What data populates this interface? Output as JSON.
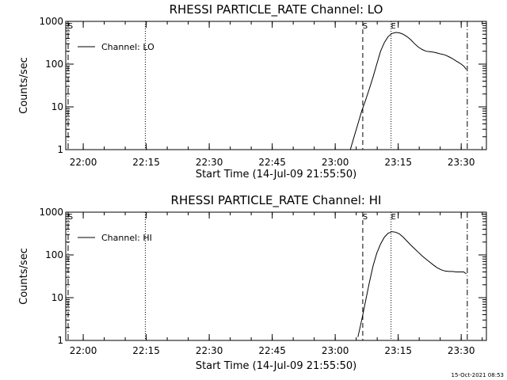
{
  "footer": {
    "timestamp": "15-Oct-2021 08:53"
  },
  "chart_data": [
    {
      "type": "line",
      "title": "RHESSI PARTICLE_RATE Channel: LO",
      "xlabel": "Start Time (14-Jul-09 21:55:50)",
      "ylabel": "Counts/sec",
      "yscale": "log",
      "xlim": [
        21.9306,
        23.6
      ],
      "ylim": [
        1,
        1000
      ],
      "xticks": [
        {
          "v": 22.0,
          "label": "22:00"
        },
        {
          "v": 22.25,
          "label": "22:15"
        },
        {
          "v": 22.5,
          "label": "22:30"
        },
        {
          "v": 22.75,
          "label": "22:45"
        },
        {
          "v": 23.0,
          "label": "23:00"
        },
        {
          "v": 23.25,
          "label": "23:15"
        },
        {
          "v": 23.5,
          "label": "23:30"
        }
      ],
      "yticks": [
        {
          "v": 1,
          "label": "1"
        },
        {
          "v": 10,
          "label": "10"
        },
        {
          "v": 100,
          "label": "100"
        },
        {
          "v": 1000,
          "label": "1000"
        }
      ],
      "legend": {
        "position": "top-left",
        "entries": [
          "Channel: LO"
        ]
      },
      "series": [
        {
          "name": "Channel: LO",
          "color": "#000000",
          "x": [
            23.06,
            23.075,
            23.09,
            23.105,
            23.12,
            23.135,
            23.15,
            23.165,
            23.18,
            23.195,
            23.21,
            23.225,
            23.24,
            23.255,
            23.27,
            23.285,
            23.3,
            23.315,
            23.33,
            23.345,
            23.36,
            23.375,
            23.39,
            23.405,
            23.42,
            23.435,
            23.45,
            23.465,
            23.48,
            23.495,
            23.51,
            23.52
          ],
          "y": [
            1,
            2,
            4,
            8,
            14,
            26,
            50,
            100,
            200,
            320,
            440,
            520,
            550,
            540,
            500,
            440,
            370,
            300,
            250,
            220,
            200,
            195,
            190,
            182,
            172,
            165,
            150,
            135,
            118,
            105,
            90,
            75
          ]
        }
      ],
      "vlines": [
        {
          "x": 21.94,
          "style": "dashdot",
          "label": "S"
        },
        {
          "x": 22.2463,
          "style": "dotted",
          "label": ""
        },
        {
          "x": 23.1093,
          "style": "dashed",
          "label": "S"
        },
        {
          "x": 23.2216,
          "style": "dotted",
          "label": "E"
        },
        {
          "x": 23.5241,
          "style": "dashdot",
          "label": ""
        }
      ]
    },
    {
      "type": "line",
      "title": "RHESSI PARTICLE_RATE Channel: HI",
      "xlabel": "Start Time (14-Jul-09 21:55:50)",
      "ylabel": "Counts/sec",
      "yscale": "log",
      "xlim": [
        21.9306,
        23.6
      ],
      "ylim": [
        1,
        1000
      ],
      "xticks": [
        {
          "v": 22.0,
          "label": "22:00"
        },
        {
          "v": 22.25,
          "label": "22:15"
        },
        {
          "v": 22.5,
          "label": "22:30"
        },
        {
          "v": 22.75,
          "label": "22:45"
        },
        {
          "v": 23.0,
          "label": "23:00"
        },
        {
          "v": 23.25,
          "label": "23:15"
        },
        {
          "v": 23.5,
          "label": "23:30"
        }
      ],
      "yticks": [
        {
          "v": 1,
          "label": "1"
        },
        {
          "v": 10,
          "label": "10"
        },
        {
          "v": 100,
          "label": "100"
        },
        {
          "v": 1000,
          "label": "1000"
        }
      ],
      "legend": {
        "position": "top-left",
        "entries": [
          "Channel: HI"
        ]
      },
      "series": [
        {
          "name": "Channel: HI",
          "color": "#000000",
          "x": [
            23.09,
            23.105,
            23.12,
            23.135,
            23.15,
            23.165,
            23.18,
            23.195,
            23.21,
            23.225,
            23.24,
            23.255,
            23.27,
            23.285,
            23.3,
            23.315,
            23.33,
            23.345,
            23.36,
            23.375,
            23.39,
            23.405,
            23.42,
            23.435,
            23.45,
            23.465,
            23.48,
            23.495,
            23.51,
            23.52
          ],
          "y": [
            1.2,
            3,
            8,
            22,
            55,
            110,
            180,
            260,
            320,
            350,
            340,
            310,
            260,
            210,
            170,
            140,
            115,
            95,
            80,
            68,
            58,
            50,
            45,
            42,
            41,
            41,
            40,
            40,
            40,
            36
          ]
        }
      ],
      "vlines": [
        {
          "x": 21.94,
          "style": "dashdot",
          "label": "S"
        },
        {
          "x": 22.2463,
          "style": "dotted",
          "label": ""
        },
        {
          "x": 23.1093,
          "style": "dashed",
          "label": "S"
        },
        {
          "x": 23.2216,
          "style": "dotted",
          "label": "E"
        },
        {
          "x": 23.5241,
          "style": "dashdot",
          "label": ""
        }
      ]
    }
  ]
}
